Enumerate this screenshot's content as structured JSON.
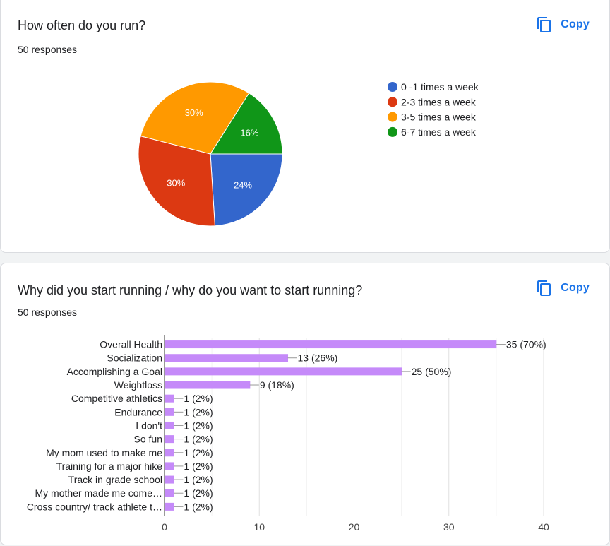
{
  "questions": [
    {
      "title": "How often do you run?",
      "responses": "50 responses",
      "copy_label": "Copy"
    },
    {
      "title": "Why did you start running / why do you want to start running?",
      "responses": "50 responses",
      "copy_label": "Copy"
    }
  ],
  "icons": {
    "copy": "copy-icon"
  },
  "colors": {
    "accent": "#1a73e8",
    "bar": "#c58af9"
  },
  "chart_data": [
    {
      "type": "pie",
      "title": "",
      "legend_placement": "right",
      "slices": [
        {
          "label": "0 -1 times a week",
          "value": 24,
          "pct_label": "24%",
          "color": "#3366cc"
        },
        {
          "label": "2-3 times a week",
          "value": 30,
          "pct_label": "30%",
          "color": "#dc3912"
        },
        {
          "label": "3-5 times a week",
          "value": 30,
          "pct_label": "30%",
          "color": "#ff9900"
        },
        {
          "label": "6-7 times a week",
          "value": 16,
          "pct_label": "16%",
          "color": "#109618"
        }
      ]
    },
    {
      "type": "bar",
      "orientation": "horizontal",
      "title": "",
      "xlabel": "",
      "ylabel": "",
      "xlim": [
        0,
        40
      ],
      "ticks": [
        0,
        10,
        20,
        30,
        40
      ],
      "grid": true,
      "categories": [
        "Overall Health",
        "Socialization",
        "Accomplishing a Goal",
        "Weightloss",
        "Competitive athletics",
        "Endurance",
        "I don't",
        "So fun",
        "My mom used to make me",
        "Training for a major hike",
        "Track in grade school",
        "My mother made me come…",
        "Cross country/ track athlete t…"
      ],
      "values": [
        35,
        13,
        25,
        9,
        1,
        1,
        1,
        1,
        1,
        1,
        1,
        1,
        1
      ],
      "value_labels": [
        "35 (70%)",
        "13 (26%)",
        "25 (50%)",
        "9 (18%)",
        "1 (2%)",
        "1 (2%)",
        "1 (2%)",
        "1 (2%)",
        "1 (2%)",
        "1 (2%)",
        "1 (2%)",
        "1 (2%)",
        "1 (2%)"
      ]
    }
  ]
}
